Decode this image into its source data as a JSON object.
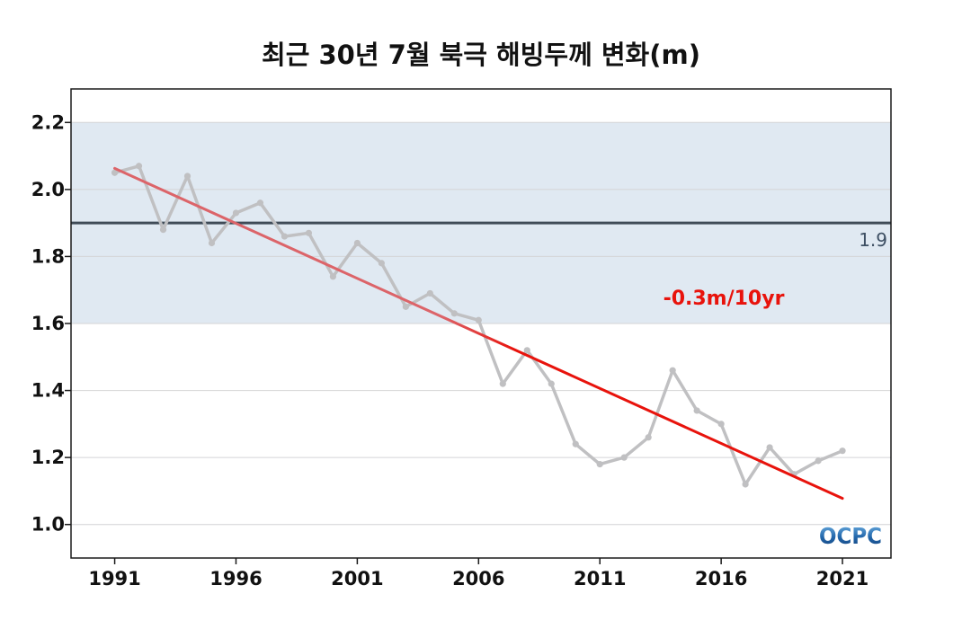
{
  "chart_data": {
    "type": "line",
    "title": "최근 30년 7월 북극 해빙두께 변화(m)",
    "xlabel": "",
    "ylabel": "",
    "xlim": [
      1989.2,
      2023.0
    ],
    "ylim": [
      0.9,
      2.3
    ],
    "x_ticks": [
      1991,
      1996,
      2001,
      2006,
      2011,
      2016,
      2021
    ],
    "y_ticks": [
      1.0,
      1.2,
      1.4,
      1.6,
      1.8,
      2.0,
      2.2
    ],
    "y_tick_labels": [
      "1.0",
      "1.2",
      "1.4",
      "1.6",
      "1.8",
      "2.0",
      "2.2"
    ],
    "grid": true,
    "shaded_band": {
      "from": 1.6,
      "to": 2.2,
      "color": "#e0e9f2"
    },
    "reference_line": {
      "value": 1.9,
      "label": "1.9",
      "color": "#3f4b57"
    },
    "series": [
      {
        "color": "#c0c0c2",
        "x": [
          1991,
          1992,
          1993,
          1994,
          1995,
          1996,
          1997,
          1998,
          1999,
          2000,
          2001,
          2002,
          2003,
          2004,
          2005,
          2006,
          2007,
          2008,
          2009,
          2010,
          2011,
          2012,
          2013,
          2014,
          2015,
          2016,
          2017,
          2018,
          2019,
          2020,
          2021
        ],
        "values": [
          2.05,
          2.07,
          1.88,
          2.04,
          1.84,
          1.93,
          1.96,
          1.86,
          1.87,
          1.74,
          1.84,
          1.78,
          1.65,
          1.69,
          1.63,
          1.61,
          1.42,
          1.52,
          1.42,
          1.24,
          1.18,
          1.2,
          1.26,
          1.46,
          1.34,
          1.3,
          1.12,
          1.23,
          1.15,
          1.19,
          1.22
        ]
      }
    ],
    "trend_line": {
      "x": [
        1991,
        2021
      ],
      "values": [
        2.063,
        1.078
      ],
      "label": "-0.3m/10yr",
      "color_start": "#dc6469",
      "color_end": "#e8130c"
    },
    "annotations": [
      {
        "text": "-0.3m/10yr"
      },
      {
        "text": "1.9"
      }
    ]
  },
  "logo": {
    "text": "OCPC",
    "color": "#2266aa"
  }
}
